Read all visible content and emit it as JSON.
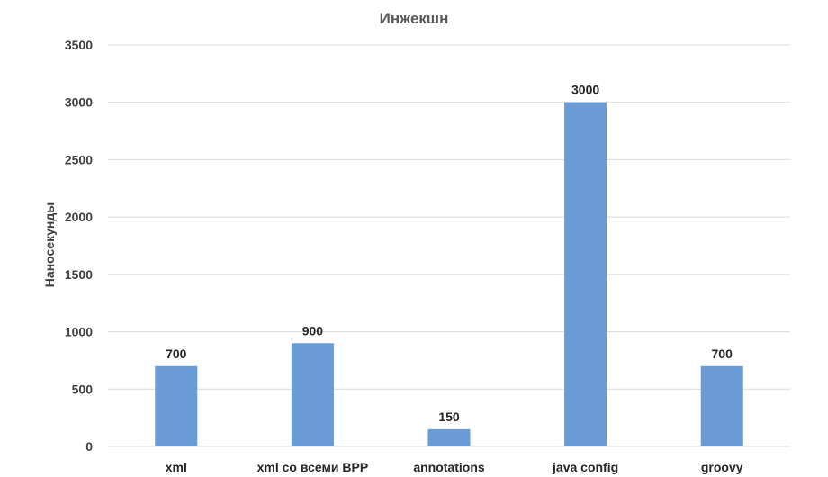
{
  "chart_data": {
    "type": "bar",
    "title": "Инжекшн",
    "xlabel": "",
    "ylabel": "Наносекунды",
    "categories": [
      "xml",
      "xml со всеми BPP",
      "annotations",
      "java config",
      "groovy"
    ],
    "values": [
      700,
      900,
      150,
      3000,
      700
    ],
    "ylim": [
      0,
      3500
    ],
    "yticks": [
      0,
      500,
      1000,
      1500,
      2000,
      2500,
      3000,
      3500
    ],
    "grid": true,
    "legend": "none",
    "bar_color": "#6a9bd4"
  }
}
